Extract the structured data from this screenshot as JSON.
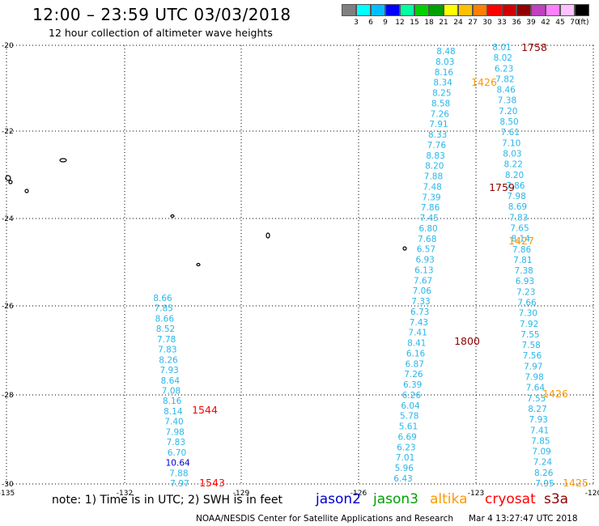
{
  "header": {
    "title": "12:00 – 23:59 UTC 03/03/2018",
    "subtitle": "12 hour collection of altimeter wave heights"
  },
  "legend": {
    "colors": [
      "#808080",
      "#00ffff",
      "#00bfff",
      "#0000ff",
      "#00ffa0",
      "#00d000",
      "#00a000",
      "#ffff00",
      "#ffc000",
      "#ff8000",
      "#ff0000",
      "#d00000",
      "#900000",
      "#c040c0",
      "#ff80ff",
      "#ffc0ff",
      "#000000"
    ],
    "labels": [
      "3",
      "6",
      "9",
      "12",
      "15",
      "18",
      "21",
      "24",
      "27",
      "30",
      "33",
      "36",
      "39",
      "42",
      "45",
      "70"
    ],
    "unit": "(ft)"
  },
  "axes": {
    "lat_labels": [
      "-20",
      "-22",
      "-24",
      "-26",
      "-28",
      "-30"
    ],
    "lon_labels": [
      "-135",
      "-132",
      "-129",
      "-126",
      "-123",
      "-120"
    ]
  },
  "tracks": {
    "track_a": {
      "color": "#29b6e8",
      "values": [
        "8.66",
        "7.85",
        "8.66",
        "8.52",
        "7.78",
        "7.83",
        "8.26",
        "7.93",
        "8.64",
        "7.08",
        "8.16",
        "8.14",
        "7.40",
        "7.98",
        "7.83",
        "6.70",
        "10.64",
        "7.88",
        "7.97"
      ],
      "value_colors": {
        "10.64": "#0000cc"
      },
      "times": [
        {
          "label": "1544",
          "color": "#ff0000"
        },
        {
          "label": "1543",
          "color": "#ff0000"
        }
      ]
    },
    "track_b": {
      "color": "#29b6e8",
      "values": [
        "8.48",
        "8.03",
        "8.16",
        "8.34",
        "8.25",
        "8.58",
        "7.26",
        "7.91",
        "8.33",
        "7.76",
        "8.83",
        "8.20",
        "7.88",
        "7.48",
        "7.39",
        "7.86",
        "7.45",
        "6.80",
        "7.68",
        "6.57",
        "6.93",
        "6.13",
        "7.67",
        "7.06",
        "7.33",
        "6.73",
        "7.43",
        "7.41",
        "8.41",
        "6.16",
        "6.87",
        "7.26",
        "6.39",
        "6.26",
        "6.04",
        "5.78",
        "5.61",
        "6.69",
        "6.23",
        "7.01",
        "5.96",
        "6.43"
      ],
      "times": [
        {
          "label": "1800",
          "color": "#900000"
        }
      ]
    },
    "track_c": {
      "color": "#29b6e8",
      "values": [
        "8.01",
        "8.02",
        "6.23",
        "7.82",
        "8.46",
        "7.38",
        "7.20",
        "8.50",
        "7.61",
        "7.10",
        "8.03",
        "8.22",
        "8.20",
        "7.86",
        "7.98",
        "8.69",
        "7.83",
        "7.65",
        "8.14",
        "7.86",
        "7.81",
        "7.38",
        "6.93",
        "7.23",
        "7.66",
        "7.30",
        "7.92",
        "7.55",
        "7.58",
        "7.56",
        "7.97",
        "7.98",
        "7.64",
        "7.55",
        "8.27",
        "7.93",
        "7.41",
        "7.85",
        "7.09",
        "7.24",
        "8.26",
        "7.95"
      ],
      "times": [
        {
          "label": "1758",
          "color": "#900000"
        },
        {
          "label": "1759",
          "color": "#900000"
        }
      ]
    },
    "track_d": {
      "times": [
        {
          "label": "1426",
          "color": "#ff9900"
        },
        {
          "label": "1427",
          "color": "#ff9900"
        },
        {
          "label": "1426",
          "color": "#ff9900"
        },
        {
          "label": "1425",
          "color": "#ff9900"
        }
      ]
    }
  },
  "footer": {
    "note": "note: 1) Time is in UTC; 2) SWH is in feet",
    "missions": [
      {
        "name": "jason2",
        "color": "#0000cc"
      },
      {
        "name": "jason3",
        "color": "#00a000"
      },
      {
        "name": "altika",
        "color": "#ff9900"
      },
      {
        "name": "cryosat",
        "color": "#ff0000"
      },
      {
        "name": "s3a",
        "color": "#900000"
      }
    ],
    "credit": "NOAA/NESDIS Center for Satellite Applications and Research",
    "timestamp": "Mar  4 13:27:47 UTC 2018"
  }
}
